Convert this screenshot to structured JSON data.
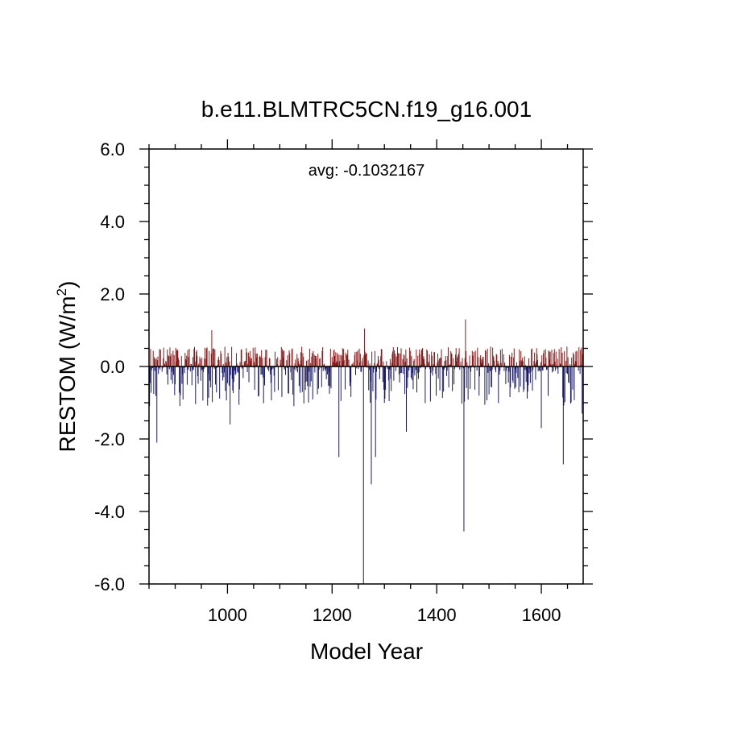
{
  "chart_data": {
    "type": "bar",
    "title": "b.e11.BLMTRC5CN.f19_g16.001",
    "xlabel": "Model Year",
    "ylabel_main": "RESTOM (W/m",
    "ylabel_sup": "2",
    "ylabel_close": ")",
    "annotation": "avg: -0.1032167",
    "xlim": [
      850,
      1680
    ],
    "ylim": [
      -6.0,
      6.0
    ],
    "xticks": [
      1000,
      1200,
      1400,
      1600
    ],
    "xtick_labels": [
      "1000",
      "1200",
      "1400",
      "1600"
    ],
    "yticks": [
      -6.0,
      -4.0,
      -2.0,
      0.0,
      2.0,
      4.0,
      6.0
    ],
    "ytick_labels": [
      "-6.0",
      "-4.0",
      "-2.0",
      "0.0",
      "2.0",
      "4.0",
      "6.0"
    ],
    "baseline": 0.0,
    "positive_color": "#8b1a1a",
    "negative_color": "#1a1a6b",
    "grid": false,
    "notable_values": [
      {
        "x": 865,
        "y": -2.1
      },
      {
        "x": 970,
        "y": 1.0
      },
      {
        "x": 1005,
        "y": -1.6
      },
      {
        "x": 1213,
        "y": -2.5
      },
      {
        "x": 1260,
        "y": -6.0
      },
      {
        "x": 1262,
        "y": 1.05
      },
      {
        "x": 1275,
        "y": -3.25
      },
      {
        "x": 1283,
        "y": -2.5
      },
      {
        "x": 1342,
        "y": -1.8
      },
      {
        "x": 1452,
        "y": -4.55
      },
      {
        "x": 1455,
        "y": 1.3
      },
      {
        "x": 1600,
        "y": -1.7
      },
      {
        "x": 1642,
        "y": -2.7
      },
      {
        "x": 1678,
        "y": -1.3
      }
    ]
  }
}
